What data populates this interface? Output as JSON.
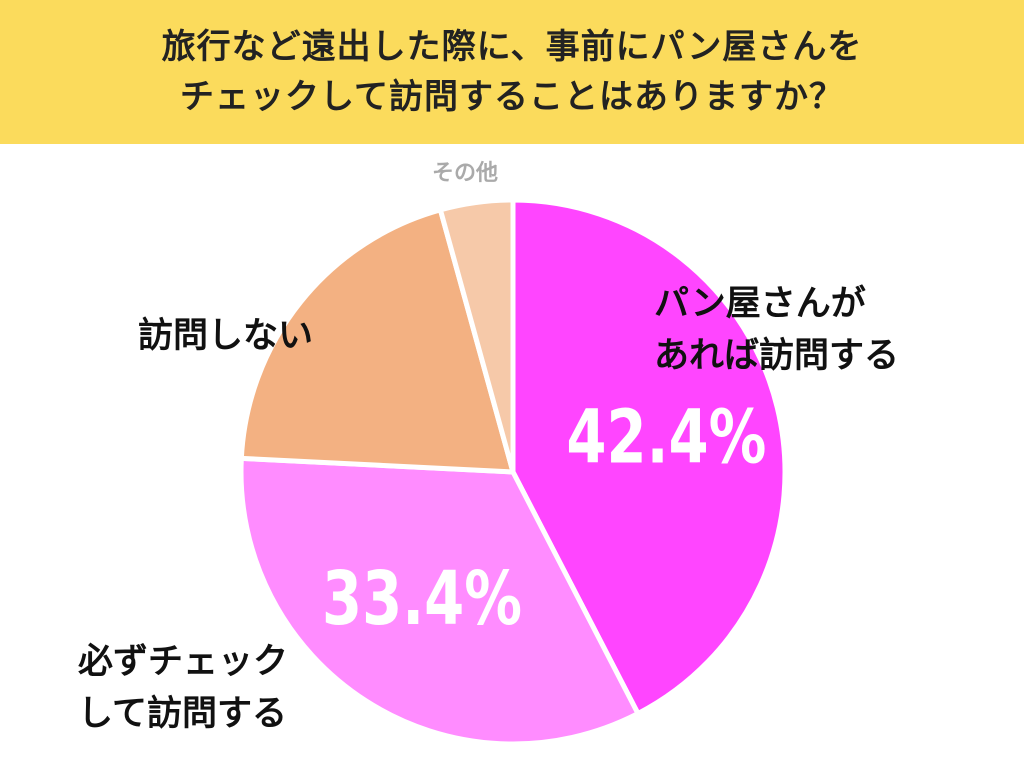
{
  "title": {
    "line1": "旅行など遠出した際に、事前にパン屋さんを",
    "line2": "チェックして訪問することはありますか？"
  },
  "chart_data": {
    "type": "pie",
    "title": "旅行など遠出した際に、事前にパン屋さんをチェックして訪問することはありますか？",
    "slices": [
      {
        "label": "パン屋さんがあれば訪問する",
        "value": 42.4,
        "value_label": "42.4%",
        "color": "#ff45ff"
      },
      {
        "label": "必ずチェックして訪問する",
        "value": 33.4,
        "value_label": "33.4%",
        "color": "#ff8cff"
      },
      {
        "label": "訪問しない",
        "value": 19.9,
        "value_label": "",
        "color": "#f3b182"
      },
      {
        "label": "その他",
        "value": 4.3,
        "value_label": "",
        "color": "#f6c9a9"
      }
    ],
    "start": "12 o'clock",
    "direction": "clockwise"
  },
  "labels": {
    "bakery_line1": "パン屋さんが",
    "bakery_line2": "あれば訪問する",
    "check_line1": "必ずチェック",
    "check_line2": "して訪問する",
    "no_visit": "訪問しない",
    "other": "その他"
  }
}
